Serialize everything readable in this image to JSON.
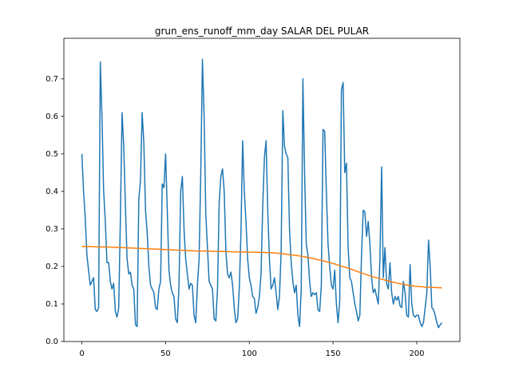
{
  "chart_data": {
    "type": "line",
    "title": "grun_ens_runoff_mm_day SALAR DEL PULAR",
    "xlim": [
      -10.75,
      225.75
    ],
    "xticks": [
      0,
      50,
      100,
      150,
      200
    ],
    "ylim": [
      0.0,
      0.808
    ],
    "yticks": [
      {
        "value": 0,
        "label": "0.0"
      },
      {
        "value": 0.1,
        "label": "0.1"
      },
      {
        "value": 0.2,
        "label": "0.2"
      },
      {
        "value": 0.3,
        "label": "0.3"
      },
      {
        "value": 0.4,
        "label": "0.4"
      },
      {
        "value": 0.5,
        "label": "0.5"
      },
      {
        "value": 0.6,
        "label": "0.6"
      },
      {
        "value": 0.7,
        "label": "0.7"
      }
    ],
    "series": [
      {
        "color": "#1f77b4",
        "x": [
          0,
          1,
          2,
          3,
          4,
          5,
          6,
          7,
          8,
          9,
          10,
          11,
          12,
          13,
          14,
          15,
          16,
          17,
          18,
          19,
          20,
          21,
          22,
          23,
          24,
          25,
          26,
          27,
          28,
          29,
          30,
          31,
          32,
          33,
          34,
          35,
          36,
          37,
          38,
          39,
          40,
          41,
          42,
          43,
          44,
          45,
          46,
          47,
          48,
          49,
          50,
          51,
          52,
          53,
          54,
          55,
          56,
          57,
          58,
          59,
          60,
          61,
          62,
          63,
          64,
          65,
          66,
          67,
          68,
          69,
          70,
          71,
          72,
          73,
          74,
          75,
          76,
          77,
          78,
          79,
          80,
          81,
          82,
          83,
          84,
          85,
          86,
          87,
          88,
          89,
          90,
          91,
          92,
          93,
          94,
          95,
          96,
          97,
          98,
          99,
          100,
          101,
          102,
          103,
          104,
          105,
          106,
          107,
          108,
          109,
          110,
          111,
          112,
          113,
          114,
          115,
          116,
          117,
          118,
          119,
          120,
          121,
          122,
          123,
          124,
          125,
          126,
          127,
          128,
          129,
          130,
          131,
          132,
          133,
          134,
          135,
          136,
          137,
          138,
          139,
          140,
          141,
          142,
          143,
          144,
          145,
          146,
          147,
          148,
          149,
          150,
          151,
          152,
          153,
          154,
          155,
          156,
          157,
          158,
          159,
          160,
          161,
          162,
          163,
          164,
          165,
          166,
          167,
          168,
          169,
          170,
          171,
          172,
          173,
          174,
          175,
          176,
          177,
          178,
          179,
          180,
          181,
          182,
          183,
          184,
          185,
          186,
          187,
          188,
          189,
          190,
          191,
          192,
          193,
          194,
          195,
          196,
          197,
          198,
          199,
          200,
          201,
          202,
          203,
          204,
          205,
          206,
          207,
          208,
          209,
          210,
          211,
          212,
          213,
          214,
          215
        ],
        "values": [
          0.5,
          0.4,
          0.33,
          0.23,
          0.19,
          0.15,
          0.16,
          0.17,
          0.085,
          0.08,
          0.09,
          0.745,
          0.6,
          0.4,
          0.32,
          0.21,
          0.21,
          0.16,
          0.14,
          0.155,
          0.08,
          0.065,
          0.09,
          0.33,
          0.61,
          0.52,
          0.36,
          0.22,
          0.18,
          0.185,
          0.15,
          0.14,
          0.045,
          0.04,
          0.38,
          0.43,
          0.61,
          0.53,
          0.35,
          0.29,
          0.2,
          0.15,
          0.14,
          0.13,
          0.09,
          0.085,
          0.14,
          0.16,
          0.42,
          0.41,
          0.5,
          0.35,
          0.19,
          0.15,
          0.13,
          0.12,
          0.06,
          0.05,
          0.15,
          0.4,
          0.44,
          0.3,
          0.22,
          0.18,
          0.14,
          0.155,
          0.15,
          0.07,
          0.05,
          0.15,
          0.22,
          0.45,
          0.752,
          0.6,
          0.34,
          0.25,
          0.16,
          0.15,
          0.14,
          0.06,
          0.055,
          0.14,
          0.37,
          0.44,
          0.46,
          0.4,
          0.24,
          0.18,
          0.17,
          0.185,
          0.15,
          0.09,
          0.05,
          0.06,
          0.14,
          0.29,
          0.535,
          0.4,
          0.32,
          0.22,
          0.17,
          0.15,
          0.12,
          0.115,
          0.075,
          0.09,
          0.12,
          0.18,
          0.36,
          0.49,
          0.535,
          0.35,
          0.22,
          0.14,
          0.15,
          0.17,
          0.13,
          0.085,
          0.12,
          0.24,
          0.615,
          0.52,
          0.5,
          0.49,
          0.3,
          0.21,
          0.16,
          0.13,
          0.15,
          0.07,
          0.04,
          0.14,
          0.7,
          0.45,
          0.26,
          0.23,
          0.16,
          0.12,
          0.13,
          0.125,
          0.13,
          0.085,
          0.08,
          0.15,
          0.565,
          0.56,
          0.4,
          0.26,
          0.2,
          0.15,
          0.14,
          0.19,
          0.1,
          0.05,
          0.11,
          0.67,
          0.69,
          0.45,
          0.475,
          0.25,
          0.17,
          0.16,
          0.13,
          0.1,
          0.08,
          0.055,
          0.07,
          0.23,
          0.35,
          0.345,
          0.28,
          0.32,
          0.26,
          0.17,
          0.13,
          0.14,
          0.12,
          0.1,
          0.22,
          0.465,
          0.17,
          0.25,
          0.155,
          0.14,
          0.21,
          0.13,
          0.1,
          0.12,
          0.11,
          0.12,
          0.095,
          0.09,
          0.16,
          0.13,
          0.07,
          0.065,
          0.205,
          0.1,
          0.07,
          0.065,
          0.07,
          0.07,
          0.05,
          0.04,
          0.05,
          0.09,
          0.13,
          0.27,
          0.2,
          0.09,
          0.085,
          0.07,
          0.05,
          0.037,
          0.045,
          0.05
        ]
      },
      {
        "color": "#ff7f0e",
        "x": [
          0,
          5,
          10,
          15,
          20,
          25,
          30,
          35,
          40,
          45,
          50,
          55,
          60,
          65,
          70,
          75,
          80,
          85,
          90,
          95,
          100,
          105,
          110,
          115,
          120,
          125,
          130,
          135,
          140,
          145,
          150,
          155,
          160,
          165,
          170,
          175,
          180,
          185,
          190,
          195,
          200,
          205,
          210,
          215
        ],
        "values": [
          0.253,
          0.253,
          0.252,
          0.252,
          0.251,
          0.25,
          0.249,
          0.248,
          0.247,
          0.246,
          0.245,
          0.244,
          0.243,
          0.242,
          0.241,
          0.241,
          0.24,
          0.24,
          0.239,
          0.239,
          0.238,
          0.238,
          0.237,
          0.236,
          0.234,
          0.231,
          0.228,
          0.224,
          0.219,
          0.214,
          0.208,
          0.201,
          0.194,
          0.186,
          0.178,
          0.171,
          0.165,
          0.159,
          0.154,
          0.15,
          0.147,
          0.145,
          0.144,
          0.143
        ]
      }
    ]
  }
}
